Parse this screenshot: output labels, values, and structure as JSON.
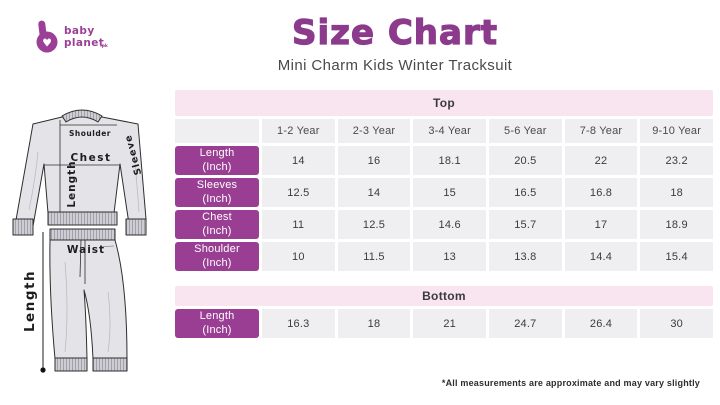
{
  "brand": {
    "line1": "baby",
    "line2": "planet",
    "suffix": ".pk"
  },
  "header": {
    "title": "Size Chart",
    "subtitle": "Mini Charm Kids Winter Tracksuit"
  },
  "diagram": {
    "labels": {
      "shoulder": "Shoulder",
      "chest": "Chest",
      "length_top": "Length",
      "sleeve": "Sleeve",
      "waist": "Waist",
      "length_bottom": "Length"
    }
  },
  "chart_data": [
    {
      "type": "table",
      "title": "Top",
      "columns": [
        "1-2 Year",
        "2-3 Year",
        "3-4 Year",
        "5-6 Year",
        "7-8 Year",
        "9-10 Year"
      ],
      "rows": [
        {
          "label": "Length",
          "unit": "(Inch)",
          "values": [
            14,
            16,
            18.1,
            20.5,
            22,
            23.2
          ]
        },
        {
          "label": "Sleeves",
          "unit": "(Inch)",
          "values": [
            12.5,
            14,
            15,
            16.5,
            16.8,
            18
          ]
        },
        {
          "label": "Chest",
          "unit": "(Inch)",
          "values": [
            11,
            12.5,
            14.6,
            15.7,
            17,
            18.9
          ]
        },
        {
          "label": "Shoulder",
          "unit": "(Inch)",
          "values": [
            10,
            11.5,
            13,
            13.8,
            14.4,
            15.4
          ]
        }
      ]
    },
    {
      "type": "table",
      "title": "Bottom",
      "rows": [
        {
          "label": "Length",
          "unit": "(Inch)",
          "values": [
            16.3,
            18,
            21,
            24.7,
            26.4,
            30
          ]
        }
      ]
    }
  ],
  "footnote": "*All measurements are approximate and may vary slightly",
  "colors": {
    "accent_purple": "#993e92",
    "title_purple": "#8c3a8c",
    "band_pink": "#f8e5f0",
    "cell_gray": "#efeef0"
  }
}
